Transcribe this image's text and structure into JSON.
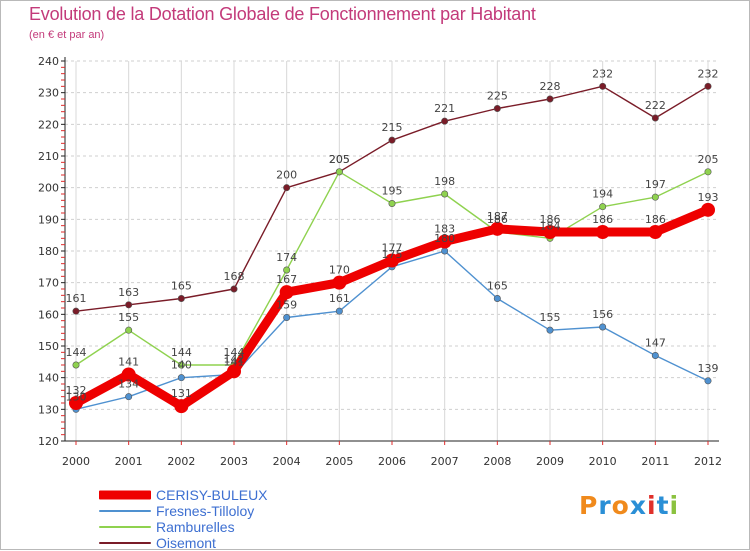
{
  "title": "Evolution de la Dotation Globale de Fonctionnement par Habitant",
  "subtitle": "(en € et par an)",
  "logo": {
    "text": "Proxiti",
    "letter_colors": [
      "#f08a1c",
      "#2a8fd6",
      "#f08a1c",
      "#2a8fd6",
      "#e0302a",
      "#2a8fd6",
      "#8bc23f"
    ]
  },
  "chart_data": {
    "type": "line",
    "title": "Evolution de la Dotation Globale de Fonctionnement par Habitant",
    "subtitle": "(en € et par an)",
    "xlabel": "",
    "ylabel": "",
    "x": [
      "2000",
      "2001",
      "2002",
      "2003",
      "2004",
      "2005",
      "2006",
      "2007",
      "2008",
      "2009",
      "2010",
      "2011",
      "2012"
    ],
    "ylim": [
      120,
      240
    ],
    "yticks": [
      "120",
      "130",
      "140",
      "150",
      "160",
      "170",
      "180",
      "190",
      "200",
      "210",
      "220",
      "230",
      "240"
    ],
    "grid": true,
    "legend_position": "bottom-left",
    "series": [
      {
        "name": "Oisemont",
        "color": "#7a1c28",
        "emphasis": false,
        "values": [
          161,
          163,
          165,
          168,
          200,
          205,
          215,
          221,
          225,
          228,
          232,
          222,
          232
        ],
        "labels": [
          "161",
          "163",
          "165",
          "168",
          "200",
          "205",
          "215",
          "221",
          "225",
          "228",
          "232",
          "222",
          "232"
        ]
      },
      {
        "name": "Ramburelles",
        "color": "#8fd24f",
        "emphasis": false,
        "values": [
          144,
          155,
          144,
          144,
          174,
          205,
          195,
          198,
          186,
          184,
          194,
          197,
          205
        ],
        "labels": [
          "144",
          "155",
          "144",
          "144",
          "174",
          "205",
          "195",
          "198",
          "186",
          "184",
          "194",
          "197",
          "205"
        ]
      },
      {
        "name": "Fresnes-Tilloloy",
        "color": "#4f91d0",
        "emphasis": false,
        "values": [
          130,
          134,
          140,
          141,
          159,
          161,
          175,
          180,
          165,
          155,
          156,
          147,
          139
        ],
        "labels": [
          "130",
          "134",
          "140",
          "141",
          "159",
          "161",
          "175",
          "180",
          "165",
          "155",
          "156",
          "147",
          "139"
        ]
      },
      {
        "name": "CERISY-BULEUX",
        "color": "#ee0000",
        "emphasis": true,
        "values": [
          132,
          141,
          131,
          142,
          167,
          170,
          177,
          183,
          187,
          186,
          186,
          186,
          193
        ],
        "labels": [
          "132",
          "141",
          "131",
          "142",
          "167",
          "170",
          "177",
          "183",
          "187",
          "186",
          "186",
          "186",
          "193"
        ]
      }
    ],
    "legend_order": [
      "CERISY-BULEUX",
      "Fresnes-Tilloloy",
      "Ramburelles",
      "Oisemont"
    ]
  }
}
